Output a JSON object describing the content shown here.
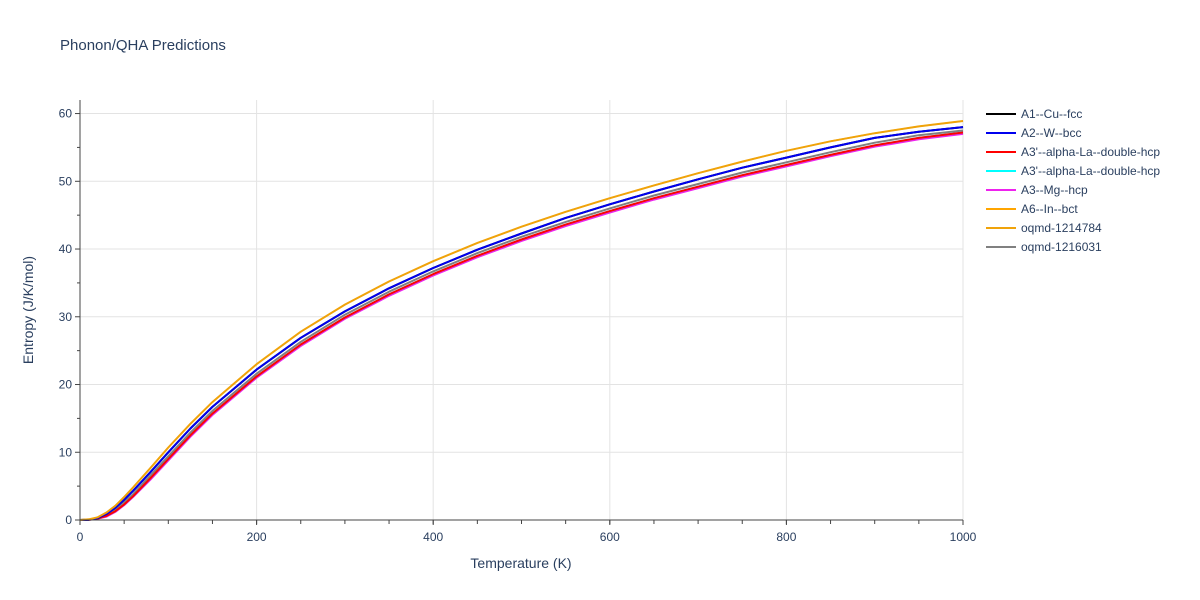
{
  "chart_data": {
    "type": "line",
    "title": "Phonon/QHA Predictions",
    "xlabel": "Temperature (K)",
    "ylabel": "Entropy (J/K/mol)",
    "xlim": [
      0,
      1000
    ],
    "ylim": [
      0,
      62
    ],
    "xticks": [
      0,
      200,
      400,
      600,
      800,
      1000
    ],
    "yticks": [
      0,
      10,
      20,
      30,
      40,
      50,
      60
    ],
    "grid": true,
    "legend_position": "right",
    "x": [
      0,
      10,
      20,
      30,
      40,
      50,
      60,
      80,
      100,
      125,
      150,
      200,
      250,
      300,
      350,
      400,
      450,
      500,
      550,
      600,
      650,
      700,
      750,
      800,
      850,
      900,
      950,
      1000
    ],
    "series": [
      {
        "name": "A1--Cu--fcc",
        "color": "#000000",
        "width": 2,
        "values": [
          0,
          0.05,
          0.3,
          0.9,
          1.8,
          3.0,
          4.3,
          7.1,
          10.0,
          13.5,
          16.7,
          22.2,
          26.9,
          30.8,
          34.2,
          37.2,
          39.9,
          42.3,
          44.6,
          46.6,
          48.5,
          50.3,
          52.0,
          53.5,
          55.0,
          56.4,
          57.3,
          58.0
        ]
      },
      {
        "name": "A2--W--bcc",
        "color": "#0000ee",
        "width": 2,
        "values": [
          0,
          0.05,
          0.3,
          0.9,
          1.8,
          3.0,
          4.3,
          7.1,
          10.0,
          13.5,
          16.7,
          22.2,
          26.9,
          30.8,
          34.2,
          37.2,
          39.9,
          42.3,
          44.6,
          46.6,
          48.5,
          50.3,
          52.0,
          53.5,
          55.0,
          56.4,
          57.3,
          58.0
        ]
      },
      {
        "name": "A3'--alpha-La--double-hcp",
        "color": "#ff0000",
        "width": 2,
        "values": [
          0,
          0.02,
          0.2,
          0.6,
          1.3,
          2.3,
          3.5,
          6.2,
          9.0,
          12.5,
          15.7,
          21.2,
          25.9,
          29.9,
          33.3,
          36.3,
          39.0,
          41.4,
          43.6,
          45.6,
          47.5,
          49.2,
          50.9,
          52.4,
          53.9,
          55.3,
          56.4,
          57.2
        ]
      },
      {
        "name": "A3'--alpha-La--double-hcp",
        "color": "#00ffff",
        "width": 2,
        "values": [
          0,
          0.02,
          0.2,
          0.6,
          1.3,
          2.3,
          3.5,
          6.2,
          9.0,
          12.5,
          15.7,
          21.2,
          25.9,
          29.9,
          33.3,
          36.3,
          39.0,
          41.4,
          43.6,
          45.6,
          47.5,
          49.2,
          50.9,
          52.4,
          53.9,
          55.3,
          56.4,
          57.2
        ]
      },
      {
        "name": "A3--Mg--hcp",
        "color": "#ee22ee",
        "width": 2,
        "values": [
          0,
          0.02,
          0.2,
          0.5,
          1.2,
          2.2,
          3.4,
          6.0,
          8.8,
          12.3,
          15.5,
          21.0,
          25.7,
          29.7,
          33.1,
          36.1,
          38.8,
          41.2,
          43.4,
          45.4,
          47.3,
          49.0,
          50.7,
          52.2,
          53.7,
          55.1,
          56.2,
          57.0
        ]
      },
      {
        "name": "A6--In--bct",
        "color": "#ffa500",
        "width": 1.5,
        "values": [
          0,
          0.1,
          0.4,
          1.1,
          2.1,
          3.4,
          4.8,
          7.7,
          10.7,
          14.2,
          17.4,
          23.0,
          27.8,
          31.8,
          35.2,
          38.2,
          40.9,
          43.3,
          45.5,
          47.5,
          49.4,
          51.2,
          52.9,
          54.5,
          55.9,
          57.1,
          58.1,
          58.9
        ]
      },
      {
        "name": "oqmd-1214784",
        "color": "#f0a30a",
        "width": 2,
        "values": [
          0,
          0.1,
          0.4,
          1.1,
          2.1,
          3.4,
          4.8,
          7.7,
          10.7,
          14.2,
          17.4,
          23.0,
          27.8,
          31.8,
          35.2,
          38.2,
          40.9,
          43.3,
          45.5,
          47.5,
          49.4,
          51.2,
          52.9,
          54.5,
          55.9,
          57.1,
          58.1,
          58.9
        ]
      },
      {
        "name": "oqmd-1216031",
        "color": "#808080",
        "width": 2,
        "values": [
          0,
          0.03,
          0.25,
          0.7,
          1.5,
          2.6,
          3.8,
          6.6,
          9.4,
          12.9,
          16.1,
          21.6,
          26.3,
          30.3,
          33.7,
          36.7,
          39.4,
          41.8,
          44.0,
          46.0,
          47.9,
          49.6,
          51.3,
          52.8,
          54.3,
          55.7,
          56.8,
          57.5
        ]
      }
    ]
  }
}
